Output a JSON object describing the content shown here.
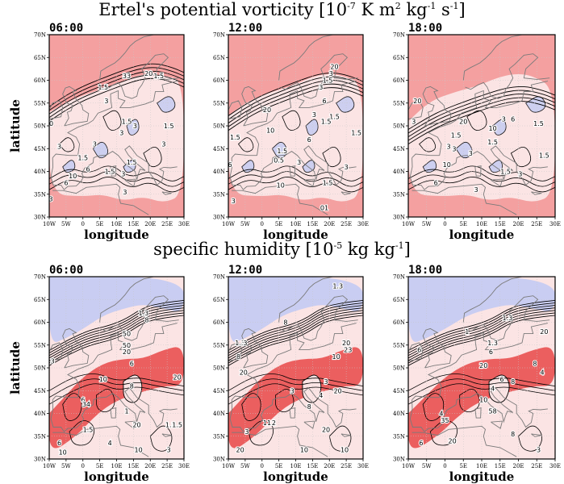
{
  "figure_titles": {
    "pv": {
      "text": "Ertel's potential vorticity [10",
      "exp1": "-7",
      "units": " K m",
      "exp2": "2",
      "units2": " kg",
      "exp3": "-1",
      "units3": " s",
      "exp4": "-1",
      "close": "]"
    },
    "q": {
      "text": "specific humidity [10",
      "exp1": "-5",
      "units": " kg kg",
      "exp2": "-1",
      "close": "]"
    }
  },
  "colors": {
    "background_high": "#f4a0a0",
    "background_mid": "#fbe4e4",
    "background_low": "#c9cdf2",
    "strong_red": "#e84848",
    "contour": "#000000",
    "coastline": "#7a7a7a",
    "grid": "#c8c8c8"
  },
  "chart_data": [
    {
      "type": "heatmap",
      "variable": "Ertel's potential vorticity",
      "title": "06:00",
      "xlabel": "longitude",
      "ylabel": "latitude",
      "xticks": [
        "10W",
        "5W",
        "0",
        "5E",
        "10E",
        "15E",
        "20E",
        "25E",
        "30E"
      ],
      "yticks": [
        "30N",
        "35N",
        "40N",
        "45N",
        "50N",
        "55N",
        "60N",
        "65N",
        "70N"
      ],
      "xlim": [
        -10,
        30
      ],
      "ylim": [
        30,
        70
      ],
      "contour_labels": [
        {
          "lon": 19.5,
          "lat": 61.5,
          "text": "20"
        },
        {
          "lon": 13,
          "lat": 61,
          "text": "33"
        },
        {
          "lon": 22.5,
          "lat": 61,
          "text": "1.5"
        },
        {
          "lon": 6,
          "lat": 58.5,
          "text": "1.5"
        },
        {
          "lon": 7,
          "lat": 55.5,
          "text": "3"
        },
        {
          "lon": -10,
          "lat": 50.5,
          "text": "20"
        },
        {
          "lon": 13,
          "lat": 51,
          "text": "1.5"
        },
        {
          "lon": 15.5,
          "lat": 50,
          "text": "3"
        },
        {
          "lon": 25.5,
          "lat": 50,
          "text": "1.5"
        },
        {
          "lon": 11.5,
          "lat": 48.5,
          "text": "3"
        },
        {
          "lon": 3.5,
          "lat": 46,
          "text": "3"
        },
        {
          "lon": -7,
          "lat": 45.5,
          "text": "3"
        },
        {
          "lon": 24,
          "lat": 46,
          "text": "3"
        },
        {
          "lon": 0,
          "lat": 43,
          "text": "1.5"
        },
        {
          "lon": 14.5,
          "lat": 42,
          "text": "1.5"
        },
        {
          "lon": 1.5,
          "lat": 40.5,
          "text": "6"
        },
        {
          "lon": -3,
          "lat": 39,
          "text": "10"
        },
        {
          "lon": 12,
          "lat": 39.5,
          "text": "3"
        },
        {
          "lon": -5,
          "lat": 37.5,
          "text": "6"
        },
        {
          "lon": 12.5,
          "lat": 35.5,
          "text": "3"
        },
        {
          "lon": -9.5,
          "lat": 34,
          "text": "3"
        },
        {
          "lon": 8,
          "lat": 40,
          "text": "1.5"
        }
      ]
    },
    {
      "type": "heatmap",
      "variable": "Ertel's potential vorticity",
      "title": "12:00",
      "xlabel": "longitude",
      "xticks": [
        "10W",
        "5W",
        "0",
        "5E",
        "10E",
        "15E",
        "20E",
        "25E",
        "30E"
      ],
      "yticks": [
        "30N",
        "35N",
        "40N",
        "45N",
        "50N",
        "55N",
        "60N",
        "65N",
        "70N"
      ],
      "xlim": [
        -10,
        30
      ],
      "ylim": [
        30,
        70
      ],
      "contour_labels": [
        {
          "lon": 21.5,
          "lat": 63,
          "text": "20"
        },
        {
          "lon": 20.5,
          "lat": 61.5,
          "text": "3"
        },
        {
          "lon": 19.5,
          "lat": 60,
          "text": "1.5"
        },
        {
          "lon": 17.5,
          "lat": 58.5,
          "text": "3"
        },
        {
          "lon": 18.5,
          "lat": 55.5,
          "text": "6"
        },
        {
          "lon": 1.5,
          "lat": 53.5,
          "text": "20"
        },
        {
          "lon": 15.5,
          "lat": 52.5,
          "text": "3"
        },
        {
          "lon": 21.5,
          "lat": 52,
          "text": "1.5"
        },
        {
          "lon": 19,
          "lat": 51,
          "text": "1.5"
        },
        {
          "lon": 2.5,
          "lat": 49,
          "text": "10"
        },
        {
          "lon": -8,
          "lat": 47.5,
          "text": "1.5"
        },
        {
          "lon": 14,
          "lat": 47,
          "text": "6"
        },
        {
          "lon": 28,
          "lat": 48.5,
          "text": "1.5"
        },
        {
          "lon": 6,
          "lat": 44.5,
          "text": "1.5"
        },
        {
          "lon": 5,
          "lat": 42.5,
          "text": "0.5"
        },
        {
          "lon": 11,
          "lat": 42,
          "text": "3"
        },
        {
          "lon": 25,
          "lat": 41,
          "text": "3"
        },
        {
          "lon": -9.5,
          "lat": 41.5,
          "text": "6"
        },
        {
          "lon": 19.5,
          "lat": 37.5,
          "text": "1.5"
        },
        {
          "lon": 5.5,
          "lat": 37,
          "text": "10"
        },
        {
          "lon": -8.5,
          "lat": 33.5,
          "text": "3"
        },
        {
          "lon": 18.5,
          "lat": 32,
          "text": "01"
        }
      ]
    },
    {
      "type": "heatmap",
      "variable": "Ertel's potential vorticity",
      "title": "18:00",
      "xlabel": "longitude",
      "xticks": [
        "10W",
        "5W",
        "0",
        "5E",
        "10E",
        "15E",
        "20E",
        "25E",
        "30E"
      ],
      "yticks": [
        "30N",
        "35N",
        "40N",
        "45N",
        "50N",
        "55N",
        "60N",
        "65N",
        "70N"
      ],
      "xlim": [
        -10,
        30
      ],
      "ylim": [
        30,
        70
      ],
      "contour_labels": [
        {
          "lon": -7.5,
          "lat": 55.5,
          "text": "20"
        },
        {
          "lon": 5,
          "lat": 51,
          "text": "20"
        },
        {
          "lon": -8.5,
          "lat": 51,
          "text": "3"
        },
        {
          "lon": 16,
          "lat": 51.5,
          "text": "3"
        },
        {
          "lon": 13,
          "lat": 49.5,
          "text": "10"
        },
        {
          "lon": 18.5,
          "lat": 51.5,
          "text": "6"
        },
        {
          "lon": 25.5,
          "lat": 50.5,
          "text": "1.5"
        },
        {
          "lon": 3,
          "lat": 48,
          "text": "1.5"
        },
        {
          "lon": 13,
          "lat": 46.5,
          "text": "1.5"
        },
        {
          "lon": 1,
          "lat": 45.5,
          "text": "3"
        },
        {
          "lon": 2.5,
          "lat": 45,
          "text": "3"
        },
        {
          "lon": 7,
          "lat": 44,
          "text": "3"
        },
        {
          "lon": 27,
          "lat": 43.5,
          "text": "1.5"
        },
        {
          "lon": 0.5,
          "lat": 41.5,
          "text": "10"
        },
        {
          "lon": 16.5,
          "lat": 40,
          "text": "1.5"
        },
        {
          "lon": 20.5,
          "lat": 39.5,
          "text": "3"
        },
        {
          "lon": -2.5,
          "lat": 37.5,
          "text": "6"
        },
        {
          "lon": 8.5,
          "lat": 36,
          "text": "3"
        }
      ]
    },
    {
      "type": "heatmap",
      "variable": "specific humidity",
      "title": "06:00",
      "xlabel": "longitude",
      "ylabel": "latitude",
      "xticks": [
        "10W",
        "5W",
        "0",
        "5E",
        "10E",
        "15E",
        "20E",
        "25E",
        "30E"
      ],
      "yticks": [
        "30N",
        "35N",
        "40N",
        "45N",
        "50N",
        "55N",
        "60N",
        "65N",
        "70N"
      ],
      "xlim": [
        -10,
        30
      ],
      "ylim": [
        30,
        70
      ],
      "contour_labels": [
        {
          "lon": 18,
          "lat": 62,
          "text": "1.3"
        },
        {
          "lon": 19,
          "lat": 60.5,
          "text": "8"
        },
        {
          "lon": 13,
          "lat": 57.5,
          "text": "50"
        },
        {
          "lon": 13,
          "lat": 55,
          "text": "50"
        },
        {
          "lon": 13,
          "lat": 53.5,
          "text": "20"
        },
        {
          "lon": -9,
          "lat": 51.5,
          "text": "3"
        },
        {
          "lon": 14.5,
          "lat": 51,
          "text": "6"
        },
        {
          "lon": 6,
          "lat": 47.5,
          "text": "10"
        },
        {
          "lon": 28,
          "lat": 48,
          "text": "20"
        },
        {
          "lon": 14.5,
          "lat": 46,
          "text": "8"
        },
        {
          "lon": 0,
          "lat": 43,
          "text": "6"
        },
        {
          "lon": 1,
          "lat": 42,
          "text": "34"
        },
        {
          "lon": 13,
          "lat": 40.5,
          "text": "1"
        },
        {
          "lon": 16,
          "lat": 37.5,
          "text": "20"
        },
        {
          "lon": 26,
          "lat": 37.5,
          "text": "1.3"
        },
        {
          "lon": 28,
          "lat": 37.5,
          "text": "1.5"
        },
        {
          "lon": 1.5,
          "lat": 36.5,
          "text": "1.5"
        },
        {
          "lon": -7,
          "lat": 33.5,
          "text": "6"
        },
        {
          "lon": 8,
          "lat": 33.5,
          "text": "4"
        },
        {
          "lon": -6,
          "lat": 31.5,
          "text": "10"
        },
        {
          "lon": 16.5,
          "lat": 32,
          "text": "10"
        },
        {
          "lon": 25.5,
          "lat": 32,
          "text": "3"
        }
      ]
    },
    {
      "type": "heatmap",
      "variable": "specific humidity",
      "title": "12:00",
      "xlabel": "longitude",
      "xticks": [
        "10W",
        "5W",
        "0",
        "5E",
        "10E",
        "15E",
        "20E",
        "25E",
        "30E"
      ],
      "yticks": [
        "30N",
        "35N",
        "40N",
        "45N",
        "50N",
        "55N",
        "60N",
        "65N",
        "70N"
      ],
      "xlim": [
        -10,
        30
      ],
      "ylim": [
        30,
        70
      ],
      "contour_labels": [
        {
          "lon": 22.5,
          "lat": 68,
          "text": "1.3"
        },
        {
          "lon": 7,
          "lat": 60,
          "text": "8"
        },
        {
          "lon": -6.5,
          "lat": 55.5,
          "text": "1.3"
        },
        {
          "lon": -5,
          "lat": 55.5,
          "text": "3"
        },
        {
          "lon": 25,
          "lat": 55.5,
          "text": "20"
        },
        {
          "lon": 25.5,
          "lat": 54,
          "text": "23"
        },
        {
          "lon": -7,
          "lat": 52.5,
          "text": "8"
        },
        {
          "lon": 22,
          "lat": 52.5,
          "text": "10"
        },
        {
          "lon": -5.5,
          "lat": 49,
          "text": "20"
        },
        {
          "lon": 19,
          "lat": 47,
          "text": "3"
        },
        {
          "lon": 22.5,
          "lat": 45,
          "text": "20"
        },
        {
          "lon": 17.5,
          "lat": 44,
          "text": "4"
        },
        {
          "lon": 9,
          "lat": 45,
          "text": "3"
        },
        {
          "lon": 14,
          "lat": 41.5,
          "text": "8"
        },
        {
          "lon": 1.5,
          "lat": 38,
          "text": "11"
        },
        {
          "lon": 3.5,
          "lat": 38,
          "text": "2"
        },
        {
          "lon": 19,
          "lat": 36.5,
          "text": "20"
        },
        {
          "lon": -4.5,
          "lat": 36,
          "text": "3"
        },
        {
          "lon": -6.5,
          "lat": 32,
          "text": "20"
        },
        {
          "lon": 12.5,
          "lat": 32,
          "text": "10"
        },
        {
          "lon": 24.5,
          "lat": 32,
          "text": "10"
        }
      ]
    },
    {
      "type": "heatmap",
      "variable": "specific humidity",
      "title": "18:00",
      "xlabel": "longitude",
      "xticks": [
        "10W",
        "5W",
        "0",
        "5E",
        "10E",
        "15E",
        "20E",
        "25E",
        "30E"
      ],
      "yticks": [
        "30N",
        "35N",
        "40N",
        "45N",
        "50N",
        "55N",
        "60N",
        "65N",
        "70N"
      ],
      "xlim": [
        -10,
        30
      ],
      "ylim": [
        30,
        70
      ],
      "contour_labels": [
        {
          "lon": 17,
          "lat": 61,
          "text": "1.3"
        },
        {
          "lon": 6,
          "lat": 58,
          "text": "1"
        },
        {
          "lon": 27,
          "lat": 58,
          "text": "20"
        },
        {
          "lon": 13,
          "lat": 55.5,
          "text": "1.3"
        },
        {
          "lon": -7,
          "lat": 54,
          "text": "6"
        },
        {
          "lon": 12.5,
          "lat": 53.5,
          "text": "6"
        },
        {
          "lon": 10.5,
          "lat": 50.5,
          "text": "20"
        },
        {
          "lon": 24.5,
          "lat": 51,
          "text": "8"
        },
        {
          "lon": 26.5,
          "lat": 49,
          "text": "4"
        },
        {
          "lon": 15.5,
          "lat": 47.5,
          "text": "6"
        },
        {
          "lon": 18.5,
          "lat": 47,
          "text": "8"
        },
        {
          "lon": 13,
          "lat": 45.5,
          "text": "4"
        },
        {
          "lon": 10.5,
          "lat": 43,
          "text": "10"
        },
        {
          "lon": 13,
          "lat": 40.5,
          "text": "58"
        },
        {
          "lon": 0,
          "lat": 38.5,
          "text": "35"
        },
        {
          "lon": -1,
          "lat": 40,
          "text": "4"
        },
        {
          "lon": 18.5,
          "lat": 35.5,
          "text": "8"
        },
        {
          "lon": -6.5,
          "lat": 33.5,
          "text": "6"
        },
        {
          "lon": 2,
          "lat": 34,
          "text": "20"
        },
        {
          "lon": 25.5,
          "lat": 32,
          "text": "3"
        }
      ]
    }
  ]
}
